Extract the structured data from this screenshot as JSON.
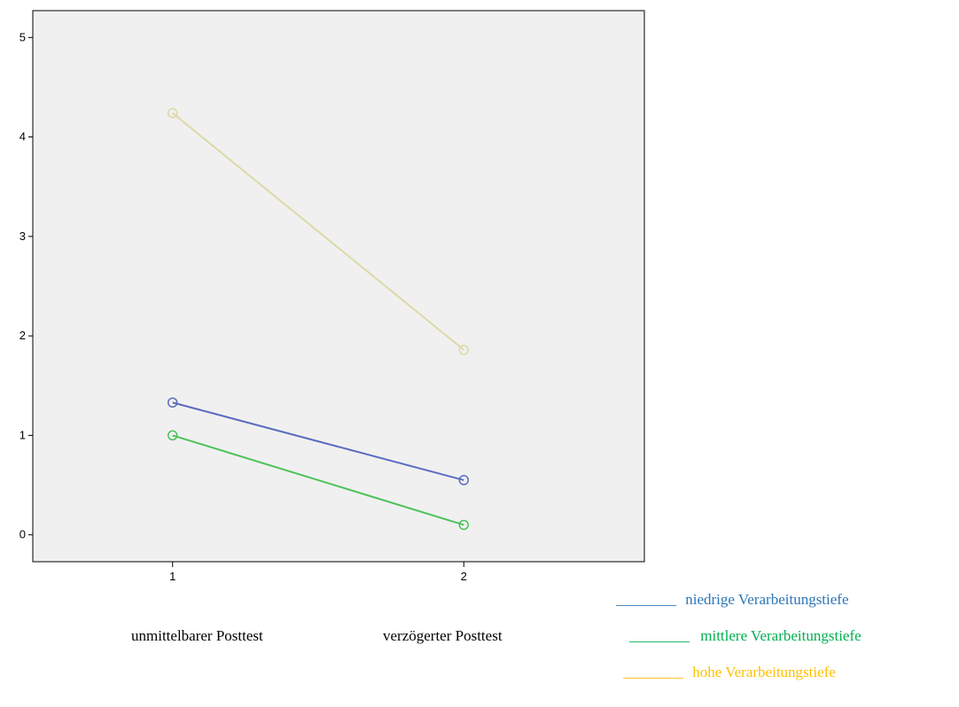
{
  "chart_data": {
    "type": "line",
    "x": [
      1,
      2
    ],
    "xticks": [
      "1",
      "2"
    ],
    "yticks": [
      "0",
      "1",
      "2",
      "3",
      "4",
      "5"
    ],
    "ylim": [
      -0.27,
      5.27
    ],
    "xlim": [
      0.52,
      2.62
    ],
    "grid": false,
    "plot_bg": "#f0f0f0",
    "series": [
      {
        "name": "niedrige Verarbeitungstiefe",
        "values": [
          1.33,
          0.55
        ],
        "color": "#5a6cbf"
      },
      {
        "name": "mittlere Verarbeitungstiefe",
        "values": [
          1.0,
          0.1
        ],
        "color": "#4cc35a"
      },
      {
        "name": "hohe Verarbeitungstiefe",
        "values": [
          4.24,
          1.86
        ],
        "color": "#dcd9a6"
      }
    ]
  },
  "category_labels": [
    "unmittelbarer Posttest",
    "verzögerter Posttest"
  ],
  "legend": [
    {
      "line": "________",
      "label": "niedrige Verarbeitungstiefe",
      "color": "#2e75b6"
    },
    {
      "line": "________",
      "label": "mittlere Verarbeitungstiefe",
      "color": "#00b050"
    },
    {
      "line": "________",
      "label": "hohe Verarbeitungstiefe",
      "color": "#ffc000"
    }
  ]
}
